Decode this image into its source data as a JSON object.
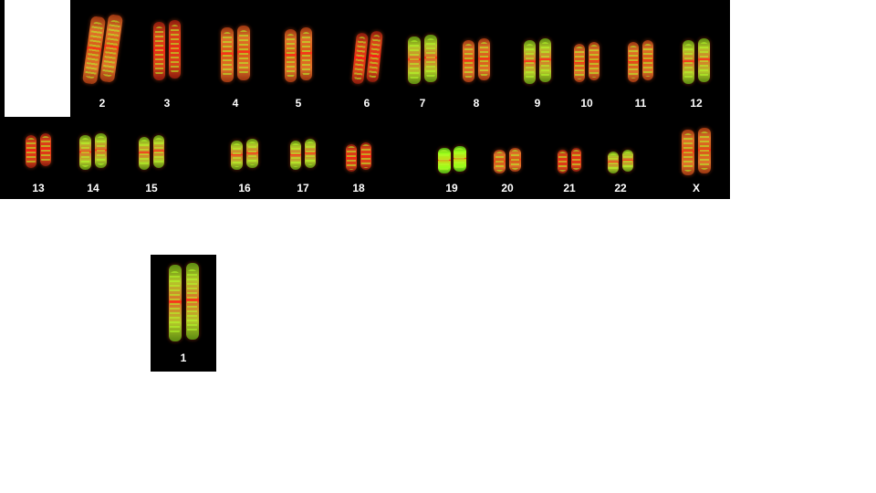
{
  "karyotype": {
    "chromosomes": [
      {
        "label": "2",
        "tone": "orange"
      },
      {
        "label": "3",
        "tone": "red"
      },
      {
        "label": "4",
        "tone": "orange"
      },
      {
        "label": "5",
        "tone": "orange"
      },
      {
        "label": "6",
        "tone": "red"
      },
      {
        "label": "7",
        "tone": "green"
      },
      {
        "label": "8",
        "tone": "orange"
      },
      {
        "label": "9",
        "tone": "green"
      },
      {
        "label": "10",
        "tone": "orange"
      },
      {
        "label": "11",
        "tone": "orange"
      },
      {
        "label": "12",
        "tone": "green"
      },
      {
        "label": "13",
        "tone": "red"
      },
      {
        "label": "14",
        "tone": "green"
      },
      {
        "label": "15",
        "tone": "green"
      },
      {
        "label": "16",
        "tone": "green"
      },
      {
        "label": "17",
        "tone": "green"
      },
      {
        "label": "18",
        "tone": "red"
      },
      {
        "label": "19",
        "tone": "lime"
      },
      {
        "label": "20",
        "tone": "orange"
      },
      {
        "label": "21",
        "tone": "red"
      },
      {
        "label": "22",
        "tone": "green"
      },
      {
        "label": "X",
        "tone": "orange"
      }
    ],
    "separated": {
      "label": "1",
      "tone": "green"
    }
  },
  "colors": {
    "panel_background": "#000000",
    "page_background": "#ffffff",
    "label_text": "#ffffff",
    "red": "#e02a14",
    "orange": "#e06a1c",
    "green": "#9acc22",
    "lime": "#9cff1a"
  }
}
